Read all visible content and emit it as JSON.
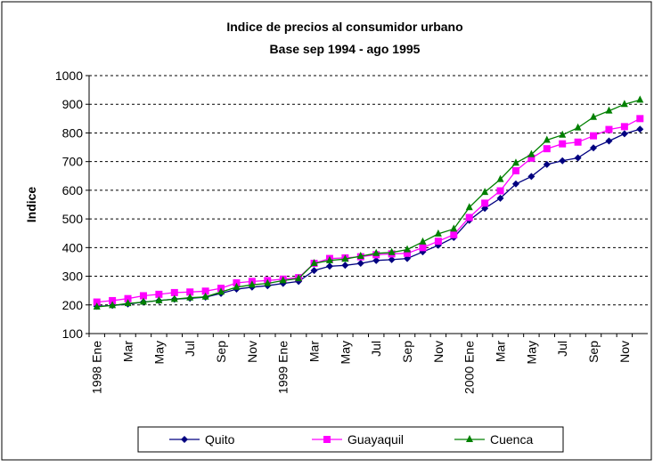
{
  "chart_data": {
    "type": "line",
    "title": "Indice de precios al consumidor urbano",
    "subtitle": "Base sep 1994 - ago 1995",
    "y_label": "Indice",
    "categories": [
      "1998 Ene",
      null,
      "Mar",
      null,
      "May",
      null,
      "Jul",
      null,
      "Sep",
      null,
      "Nov",
      null,
      "1999 Ene",
      null,
      "Mar",
      null,
      "May",
      null,
      "Jul",
      null,
      "Sep",
      null,
      "Nov",
      null,
      "2000 Ene",
      null,
      "Mar",
      null,
      "May",
      null,
      "Jul",
      null,
      "Sep",
      null,
      "Nov",
      null
    ],
    "series": [
      {
        "name": "Quito",
        "color": "#000080",
        "marker": "diamond",
        "values": [
          195,
          198,
          203,
          210,
          215,
          220,
          223,
          227,
          240,
          255,
          262,
          267,
          275,
          282,
          320,
          335,
          338,
          345,
          355,
          358,
          362,
          385,
          408,
          435,
          495,
          537,
          572,
          622,
          648,
          690,
          703,
          713,
          748,
          772,
          797,
          813
        ]
      },
      {
        "name": "Guayaquil",
        "color": "#ff00ff",
        "marker": "square",
        "values": [
          210,
          215,
          222,
          232,
          237,
          243,
          245,
          248,
          258,
          277,
          282,
          285,
          290,
          295,
          345,
          362,
          364,
          368,
          375,
          378,
          380,
          400,
          422,
          445,
          505,
          555,
          598,
          668,
          712,
          745,
          762,
          768,
          790,
          812,
          822,
          850
        ]
      },
      {
        "name": "Cuenca",
        "color": "#008000",
        "marker": "triangle",
        "values": [
          193,
          198,
          205,
          210,
          215,
          220,
          225,
          228,
          245,
          262,
          270,
          275,
          285,
          292,
          345,
          355,
          360,
          370,
          380,
          383,
          393,
          420,
          448,
          465,
          540,
          593,
          638,
          695,
          725,
          775,
          793,
          818,
          855,
          877,
          900,
          915
        ]
      }
    ],
    "ylim": [
      100,
      1000
    ],
    "yticks": [
      100,
      200,
      300,
      400,
      500,
      600,
      700,
      800,
      900,
      1000
    ],
    "grid": true,
    "legend": "bottom"
  }
}
